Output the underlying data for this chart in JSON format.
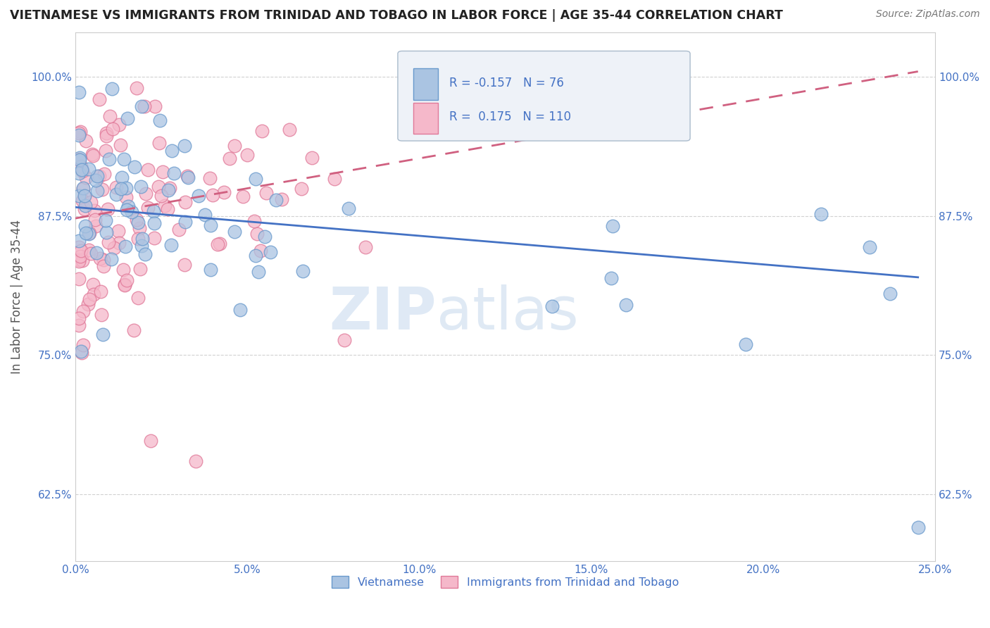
{
  "title": "VIETNAMESE VS IMMIGRANTS FROM TRINIDAD AND TOBAGO IN LABOR FORCE | AGE 35-44 CORRELATION CHART",
  "source": "Source: ZipAtlas.com",
  "ylabel": "In Labor Force | Age 35-44",
  "xlim": [
    0.0,
    0.25
  ],
  "ylim": [
    0.565,
    1.04
  ],
  "yticks": [
    0.625,
    0.75,
    0.875,
    1.0
  ],
  "ytick_labels": [
    "62.5%",
    "75.0%",
    "87.5%",
    "100.0%"
  ],
  "xticks": [
    0.0,
    0.05,
    0.1,
    0.15,
    0.2,
    0.25
  ],
  "xtick_labels": [
    "0.0%",
    "5.0%",
    "10.0%",
    "15.0%",
    "20.0%",
    "25.0%"
  ],
  "blue_color": "#aac4e2",
  "blue_edge": "#6899cc",
  "pink_color": "#f5b8ca",
  "pink_edge": "#e07898",
  "blue_line_color": "#4472c4",
  "pink_line_color": "#d06080",
  "background_color": "#ffffff",
  "grid_color": "#cccccc",
  "R_blue": -0.157,
  "N_blue": 76,
  "R_pink": 0.175,
  "N_pink": 110,
  "legend_label_blue": "Vietnamese",
  "legend_label_pink": "Immigrants from Trinidad and Tobago",
  "blue_trend_x": [
    0.0,
    0.245
  ],
  "blue_trend_y": [
    0.883,
    0.82
  ],
  "pink_trend_x": [
    0.0,
    0.245
  ],
  "pink_trend_y": [
    0.873,
    1.005
  ]
}
